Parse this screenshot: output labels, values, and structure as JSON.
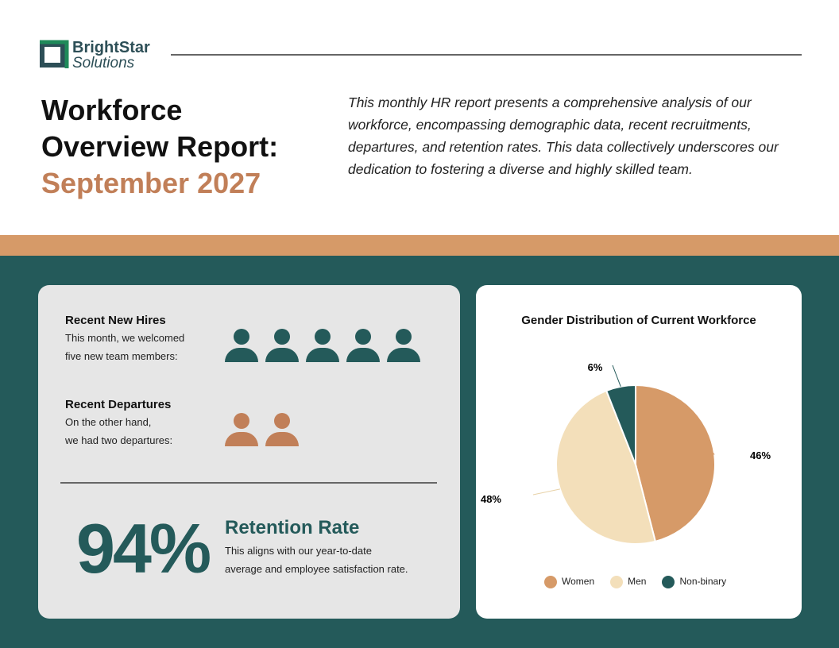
{
  "brand": {
    "name": "BrightStar",
    "sub": "Solutions",
    "color": "#2d4f57",
    "logo_accent": "#1f8a5a"
  },
  "header": {
    "title_line1": "Workforce",
    "title_line2": "Overview Report:",
    "title_line3": "September 2027",
    "intro": "This monthly HR report presents a comprehensive analysis of our workforce, encompassing demographic data, recent recruitments, departures, and retention rates. This data collectively underscores our dedication to fostering a diverse and highly skilled team."
  },
  "hires": {
    "title": "Recent New Hires",
    "line1": "This month, we welcomed",
    "line2": "five new team members:",
    "count": 5,
    "color": "#245a5a"
  },
  "departures": {
    "title": "Recent Departures",
    "line1": "On the other hand,",
    "line2": "we had two departures:",
    "count": 2,
    "color": "#c17f58"
  },
  "retention": {
    "value": "94%",
    "title": "Retention Rate",
    "line1": "This aligns with our year-to-date",
    "line2": "average and employee satisfaction rate."
  },
  "chart_data": {
    "type": "pie",
    "title": "Gender Distribution of Current Workforce",
    "legend": "bottom",
    "slices": [
      {
        "label": "Women",
        "value": 46,
        "text": "46%",
        "color": "#d69a68"
      },
      {
        "label": "Men",
        "value": 48,
        "text": "48%",
        "color": "#f3dfba"
      },
      {
        "label": "Non-binary",
        "value": 6,
        "text": "6%",
        "color": "#245a5a"
      }
    ]
  }
}
